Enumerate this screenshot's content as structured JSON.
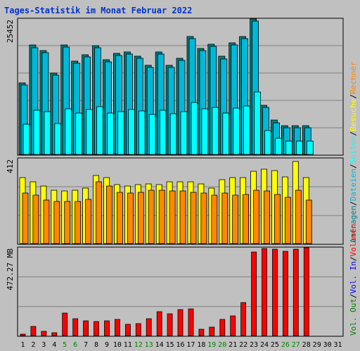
{
  "title": "Tages-Statistik im Monat Februar 2022",
  "colors": {
    "background": "#c0c0c0",
    "title": "#0033cc",
    "grid": "#808080",
    "anfragen": "#008080",
    "dateien": "#00b8d8",
    "seiten": "#00ffff",
    "besuche": "#ffff00",
    "rechner": "#ff8800",
    "volumen": "#ff0000",
    "vol_in": "#0000ff",
    "vol_out": "#008000",
    "weekend": "#008000",
    "weekday": "#000000"
  },
  "chart_data": [
    {
      "type": "bar",
      "title": "Tages-Statistik im Monat Februar 2022",
      "ymax_label": "25452",
      "ylim": [
        0,
        25452
      ],
      "categories": [
        "1",
        "2",
        "3",
        "4",
        "5",
        "6",
        "7",
        "8",
        "9",
        "10",
        "11",
        "12",
        "13",
        "14",
        "15",
        "16",
        "17",
        "18",
        "19",
        "20",
        "21",
        "22",
        "23",
        "24",
        "25",
        "26",
        "27",
        "28",
        "29",
        "30",
        "31"
      ],
      "series": [
        {
          "name": "Anfragen",
          "values": [
            13500,
            20600,
            19500,
            15300,
            20600,
            17500,
            18700,
            20500,
            17800,
            19000,
            19300,
            18500,
            16700,
            19300,
            16800,
            18100,
            22100,
            19900,
            20700,
            18400,
            21000,
            22200,
            25452,
            9200,
            6400,
            5400,
            5400,
            5400,
            0,
            0,
            0
          ]
        },
        {
          "name": "Dateien",
          "values": [
            13100,
            20100,
            19100,
            14900,
            20200,
            17100,
            18300,
            20100,
            17400,
            18600,
            18900,
            18100,
            16300,
            18900,
            16400,
            17700,
            21700,
            19500,
            20300,
            18000,
            20600,
            21800,
            25000,
            8800,
            6000,
            5000,
            5000,
            5000,
            0,
            0,
            0
          ]
        },
        {
          "name": "Seiten",
          "values": [
            5700,
            8300,
            8000,
            5800,
            8600,
            7800,
            8400,
            9000,
            7800,
            8100,
            8500,
            8200,
            7500,
            8300,
            7600,
            8100,
            9800,
            8600,
            8900,
            7800,
            8700,
            9100,
            11700,
            4500,
            3000,
            2500,
            2500,
            2500,
            0,
            0,
            0
          ]
        }
      ]
    },
    {
      "type": "bar",
      "ymax_label": "412",
      "ylim": [
        0,
        412
      ],
      "categories": [
        "1",
        "2",
        "3",
        "4",
        "5",
        "6",
        "7",
        "8",
        "9",
        "10",
        "11",
        "12",
        "13",
        "14",
        "15",
        "16",
        "17",
        "18",
        "19",
        "20",
        "21",
        "22",
        "23",
        "24",
        "25",
        "26",
        "27",
        "28",
        "29",
        "30",
        "31"
      ],
      "series": [
        {
          "name": "Besuche",
          "values": [
            320,
            300,
            280,
            260,
            255,
            260,
            270,
            330,
            320,
            285,
            280,
            285,
            290,
            285,
            300,
            300,
            300,
            290,
            270,
            310,
            320,
            320,
            350,
            360,
            355,
            325,
            400,
            320,
            0,
            0,
            0
          ]
        },
        {
          "name": "Rechner",
          "values": [
            245,
            235,
            210,
            205,
            205,
            205,
            215,
            300,
            280,
            250,
            245,
            250,
            260,
            260,
            255,
            255,
            250,
            245,
            235,
            245,
            235,
            240,
            260,
            255,
            240,
            225,
            260,
            210,
            0,
            0,
            0
          ]
        }
      ]
    },
    {
      "type": "bar",
      "ymax_label": "472.27 MB",
      "ylim": [
        0,
        472.27
      ],
      "unit": "MB",
      "categories": [
        "1",
        "2",
        "3",
        "4",
        "5",
        "6",
        "7",
        "8",
        "9",
        "10",
        "11",
        "12",
        "13",
        "14",
        "15",
        "16",
        "17",
        "18",
        "19",
        "20",
        "21",
        "22",
        "23",
        "24",
        "25",
        "26",
        "27",
        "28",
        "29",
        "30",
        "31"
      ],
      "series": [
        {
          "name": "Volumen",
          "values": [
            8,
            48,
            22,
            14,
            120,
            92,
            80,
            74,
            78,
            88,
            60,
            66,
            92,
            128,
            116,
            138,
            144,
            34,
            46,
            88,
            104,
            178,
            450,
            470,
            464,
            454,
            466,
            472,
            0,
            0,
            0
          ]
        }
      ]
    }
  ],
  "labels": {
    "right_top": [
      {
        "text": "Anfragen",
        "key": "anfragen"
      },
      {
        "text": "/",
        "key": "weekday"
      },
      {
        "text": "Dateien",
        "key": "dateien"
      },
      {
        "text": "/",
        "key": "weekday"
      },
      {
        "text": "Seiten",
        "key": "seiten"
      },
      {
        "text": "/",
        "key": "weekday"
      },
      {
        "text": "Besuche",
        "key": "besuche"
      },
      {
        "text": "/",
        "key": "weekday"
      },
      {
        "text": "Rechner",
        "key": "rechner"
      }
    ],
    "right_bottom": [
      {
        "text": "Vol. Out",
        "key": "vol_out"
      },
      {
        "text": "/",
        "key": "weekday"
      },
      {
        "text": "Vol. In",
        "key": "vol_in"
      },
      {
        "text": "/",
        "key": "weekday"
      },
      {
        "text": "Volumen",
        "key": "volumen"
      }
    ]
  },
  "days": [
    {
      "label": "1",
      "weekend": false
    },
    {
      "label": "2",
      "weekend": false
    },
    {
      "label": "3",
      "weekend": false
    },
    {
      "label": "4",
      "weekend": false
    },
    {
      "label": "5",
      "weekend": true
    },
    {
      "label": "6",
      "weekend": true
    },
    {
      "label": "7",
      "weekend": false
    },
    {
      "label": "8",
      "weekend": false
    },
    {
      "label": "9",
      "weekend": false
    },
    {
      "label": "10",
      "weekend": false
    },
    {
      "label": "11",
      "weekend": false
    },
    {
      "label": "12",
      "weekend": true
    },
    {
      "label": "13",
      "weekend": true
    },
    {
      "label": "14",
      "weekend": false
    },
    {
      "label": "15",
      "weekend": false
    },
    {
      "label": "16",
      "weekend": false
    },
    {
      "label": "17",
      "weekend": false
    },
    {
      "label": "18",
      "weekend": false
    },
    {
      "label": "19",
      "weekend": true
    },
    {
      "label": "20",
      "weekend": true
    },
    {
      "label": "21",
      "weekend": false
    },
    {
      "label": "22",
      "weekend": false
    },
    {
      "label": "23",
      "weekend": false
    },
    {
      "label": "24",
      "weekend": false
    },
    {
      "label": "25",
      "weekend": false
    },
    {
      "label": "26",
      "weekend": true
    },
    {
      "label": "27",
      "weekend": true
    },
    {
      "label": "28",
      "weekend": false
    },
    {
      "label": "29",
      "weekend": false
    },
    {
      "label": "30",
      "weekend": false
    },
    {
      "label": "31",
      "weekend": false
    }
  ]
}
